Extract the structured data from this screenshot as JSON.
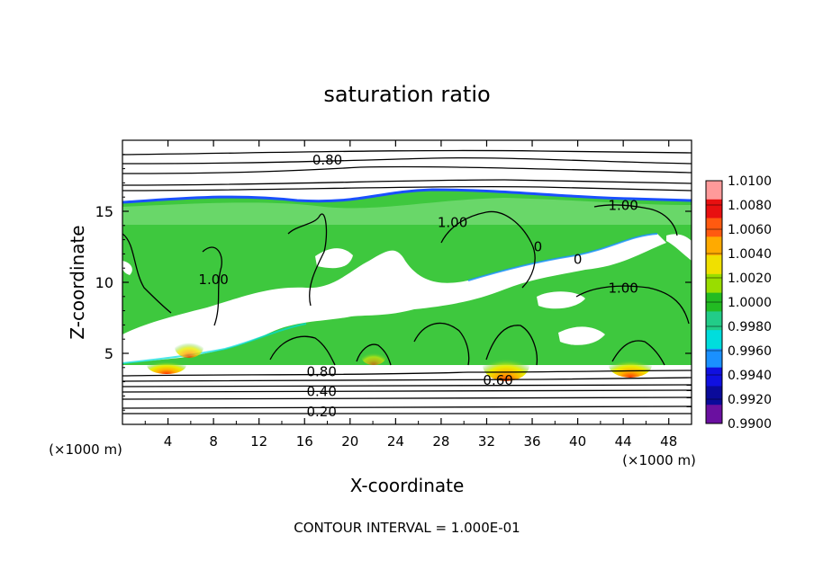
{
  "chart_data": {
    "type": "heatmap",
    "title": "saturation ratio",
    "xlabel": "X-coordinate",
    "ylabel": "Z-coordinate",
    "x_unit_label_left": "(×1000 m)",
    "x_unit_label_right": "(×1000 m)",
    "footer": "CONTOUR INTERVAL = 1.000E-01",
    "xlim": [
      0,
      50
    ],
    "ylim": [
      0,
      20
    ],
    "x_ticks": [
      "4",
      "8",
      "12",
      "16",
      "20",
      "24",
      "28",
      "32",
      "36",
      "40",
      "44",
      "48"
    ],
    "y_ticks": [
      "5",
      "10",
      "15"
    ],
    "contour_labels": [
      {
        "text": "0.80",
        "x": 18,
        "z": 18.6
      },
      {
        "text": "1.00",
        "x": 29,
        "z": 14.2
      },
      {
        "text": "1.00",
        "x": 44,
        "z": 15.4
      },
      {
        "text": "1.00",
        "x": 44,
        "z": 9.6
      },
      {
        "text": "1.00",
        "x": 8,
        "z": 10.2
      },
      {
        "text": "0",
        "x": 36.5,
        "z": 12.5
      },
      {
        "text": "0",
        "x": 40,
        "z": 11.6
      },
      {
        "text": "0.80",
        "x": 17.5,
        "z": 3.7
      },
      {
        "text": "0.60",
        "x": 33,
        "z": 3.1
      },
      {
        "text": "0.40",
        "x": 17.5,
        "z": 2.3
      },
      {
        "text": "0.20",
        "x": 17.5,
        "z": 0.9
      }
    ],
    "colorbar": {
      "labels": [
        "1.0100",
        "1.0080",
        "1.0060",
        "1.0040",
        "1.0020",
        "1.0000",
        "0.9980",
        "0.9960",
        "0.9940",
        "0.9920",
        "0.9900"
      ],
      "colors": [
        "#ff9a9a",
        "#e81010",
        "#ff5a10",
        "#ffaa00",
        "#f0e000",
        "#99dd00",
        "#22bb22",
        "#22cc88",
        "#00dddd",
        "#1a90ff",
        "#1010e0",
        "#0a0a9a",
        "#6a10a0"
      ],
      "range": [
        0.99,
        1.01
      ]
    },
    "colors": {
      "supersat": "#3ec83e",
      "subsat": "#ffffff",
      "cloud_edge": "#1a50ff"
    }
  }
}
